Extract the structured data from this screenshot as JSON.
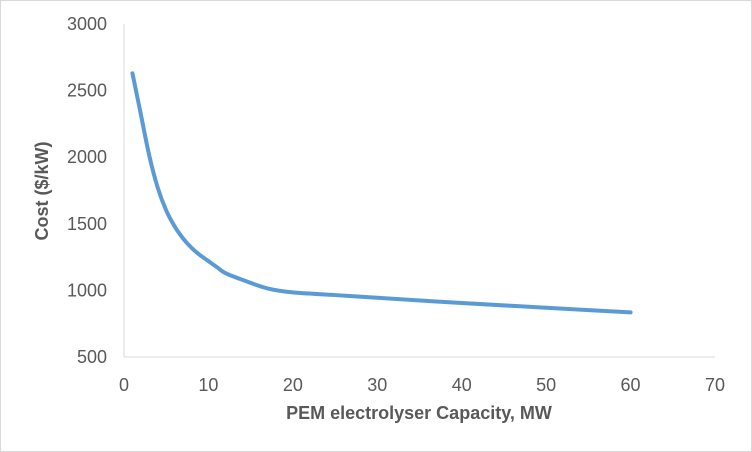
{
  "chart_data": {
    "type": "line",
    "title": "",
    "xlabel": "PEM electrolyser  Capacity,  MW",
    "ylabel": "Cost ($/kW)",
    "xlim": [
      0,
      70
    ],
    "ylim": [
      500,
      3000
    ],
    "x_ticks": [
      "0",
      "10",
      "20",
      "30",
      "40",
      "50",
      "60",
      "70"
    ],
    "y_ticks": [
      "500",
      "1000",
      "1500",
      "2000",
      "2500",
      "3000"
    ],
    "grid": false,
    "legend": "none",
    "series": [
      {
        "color": "#5b9bd5",
        "x": [
          1,
          2,
          3,
          4,
          5,
          6,
          7,
          8,
          9,
          10,
          11,
          12,
          14,
          17,
          20,
          25,
          30,
          40,
          50,
          60
        ],
        "y": [
          2630,
          2320,
          2010,
          1770,
          1600,
          1480,
          1390,
          1320,
          1265,
          1220,
          1175,
          1130,
          1080,
          1015,
          985,
          965,
          945,
          905,
          870,
          835
        ]
      }
    ]
  }
}
